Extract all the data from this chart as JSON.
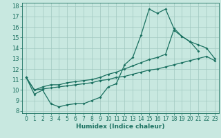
{
  "xlabel": "Humidex (Indice chaleur)",
  "background_color": "#c8e8e0",
  "grid_color": "#a0c8c0",
  "line_color": "#1a7060",
  "xlim": [
    -0.5,
    23.5
  ],
  "ylim": [
    7.8,
    18.3
  ],
  "yticks": [
    8,
    9,
    10,
    11,
    12,
    13,
    14,
    15,
    16,
    17,
    18
  ],
  "xticks": [
    0,
    1,
    2,
    3,
    4,
    5,
    6,
    7,
    8,
    9,
    10,
    11,
    12,
    13,
    14,
    15,
    16,
    17,
    18,
    19,
    20,
    21,
    22,
    23
  ],
  "line1_x": [
    0,
    1,
    2,
    3,
    4,
    5,
    6,
    7,
    8,
    9,
    10,
    11,
    12,
    13,
    14,
    15,
    16,
    17,
    18,
    19,
    20,
    21
  ],
  "line1_y": [
    11.2,
    9.6,
    10.0,
    8.7,
    8.4,
    8.6,
    8.7,
    8.7,
    9.0,
    9.3,
    10.3,
    10.6,
    12.4,
    13.1,
    15.2,
    17.7,
    17.3,
    17.7,
    15.9,
    15.1,
    14.6,
    13.7
  ],
  "line2_x": [
    0,
    1,
    2,
    3,
    4,
    5,
    6,
    7,
    8,
    9,
    10,
    11,
    12,
    13,
    14,
    15,
    16,
    17,
    18,
    19,
    20,
    21,
    22,
    23
  ],
  "line2_y": [
    11.2,
    10.0,
    10.3,
    10.5,
    10.5,
    10.7,
    10.8,
    10.9,
    11.0,
    11.2,
    11.5,
    11.7,
    12.0,
    12.3,
    12.6,
    12.9,
    13.1,
    13.4,
    15.7,
    15.1,
    14.6,
    14.3,
    14.0,
    13.0
  ],
  "line3_x": [
    0,
    1,
    2,
    3,
    4,
    5,
    6,
    7,
    8,
    9,
    10,
    11,
    12,
    13,
    14,
    15,
    16,
    17,
    18,
    19,
    20,
    21,
    22,
    23
  ],
  "line3_y": [
    11.2,
    10.0,
    10.1,
    10.2,
    10.3,
    10.4,
    10.5,
    10.6,
    10.7,
    10.9,
    11.0,
    11.2,
    11.3,
    11.5,
    11.7,
    11.9,
    12.0,
    12.2,
    12.4,
    12.6,
    12.8,
    13.0,
    13.2,
    12.8
  ]
}
